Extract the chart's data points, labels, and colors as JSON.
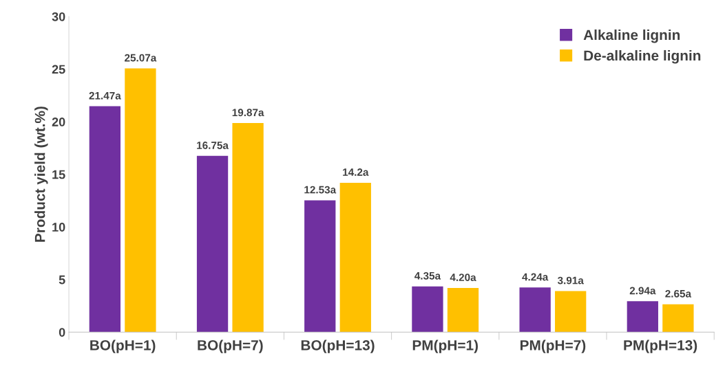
{
  "chart_data": {
    "type": "bar",
    "ylabel": "Product yield (wt.%)",
    "categories": [
      "BO(pH=1)",
      "BO(pH=7)",
      "BO(pH=13)",
      "PM(pH=1)",
      "PM(pH=7)",
      "PM(pH=13)"
    ],
    "series": [
      {
        "name": "Alkaline lignin",
        "color": "#7030a0",
        "values": [
          21.47,
          16.75,
          12.53,
          4.35,
          4.24,
          2.94
        ],
        "value_labels": [
          "21.47a",
          "16.75a",
          "12.53a",
          "4.35a",
          "4.24a",
          "2.94a"
        ]
      },
      {
        "name": "De-alkaline lignin",
        "color": "#ffc000",
        "values": [
          25.07,
          19.87,
          14.2,
          4.2,
          3.91,
          2.65
        ],
        "value_labels": [
          "25.07a",
          "19.87a",
          "14.2a",
          "4.20a",
          "3.91a",
          "2.65a"
        ]
      }
    ],
    "ylim": [
      0,
      30
    ],
    "yticks": [
      0,
      5,
      10,
      15,
      20,
      25,
      30
    ],
    "grid": false,
    "legend": "top right"
  }
}
